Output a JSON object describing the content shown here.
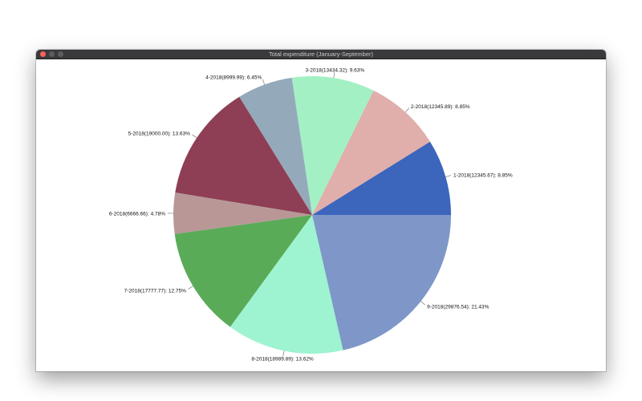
{
  "window": {
    "title": "Total expenditure (January-September)"
  },
  "chart_data": {
    "type": "pie",
    "title": "Total expenditure (January-September)",
    "start_angle": "3 o'clock",
    "direction": "counterclockwise",
    "slices": [
      {
        "month": "1-2018",
        "value": 12345.67,
        "percent": 8.85,
        "label": "1-2018(12345.67): 8.85%",
        "color": "#3c65bc"
      },
      {
        "month": "2-2018",
        "value": 12345.89,
        "percent": 8.85,
        "label": "2-2018(12345.89): 8.85%",
        "color": "#e0aeab"
      },
      {
        "month": "3-2018",
        "value": 13434.32,
        "percent": 9.63,
        "label": "3-2018(13434.32): 9.63%",
        "color": "#a3f0c4"
      },
      {
        "month": "4-2018",
        "value": 8999.99,
        "percent": 6.45,
        "label": "4-2018(8999.99): 6.45%",
        "color": "#94aabb"
      },
      {
        "month": "5-2018",
        "value": 19000.0,
        "percent": 13.63,
        "label": "5-2018(19000.00): 13.63%",
        "color": "#8e3f55"
      },
      {
        "month": "6-2018",
        "value": 6666.66,
        "percent": 4.78,
        "label": "6-2018(6666.66): 4.78%",
        "color": "#b89796"
      },
      {
        "month": "7-2018",
        "value": 17777.77,
        "percent": 12.75,
        "label": "7-2018(17777.77): 12.75%",
        "color": "#5aab58"
      },
      {
        "month": "8-2018",
        "value": 18989.89,
        "percent": 13.62,
        "label": "8-2018(18989.89): 13.62%",
        "color": "#9ef3d1"
      },
      {
        "month": "9-2018",
        "value": 29876.54,
        "percent": 21.43,
        "label": "9-2018(29876.54): 21.43%",
        "color": "#7e97c8"
      }
    ]
  }
}
